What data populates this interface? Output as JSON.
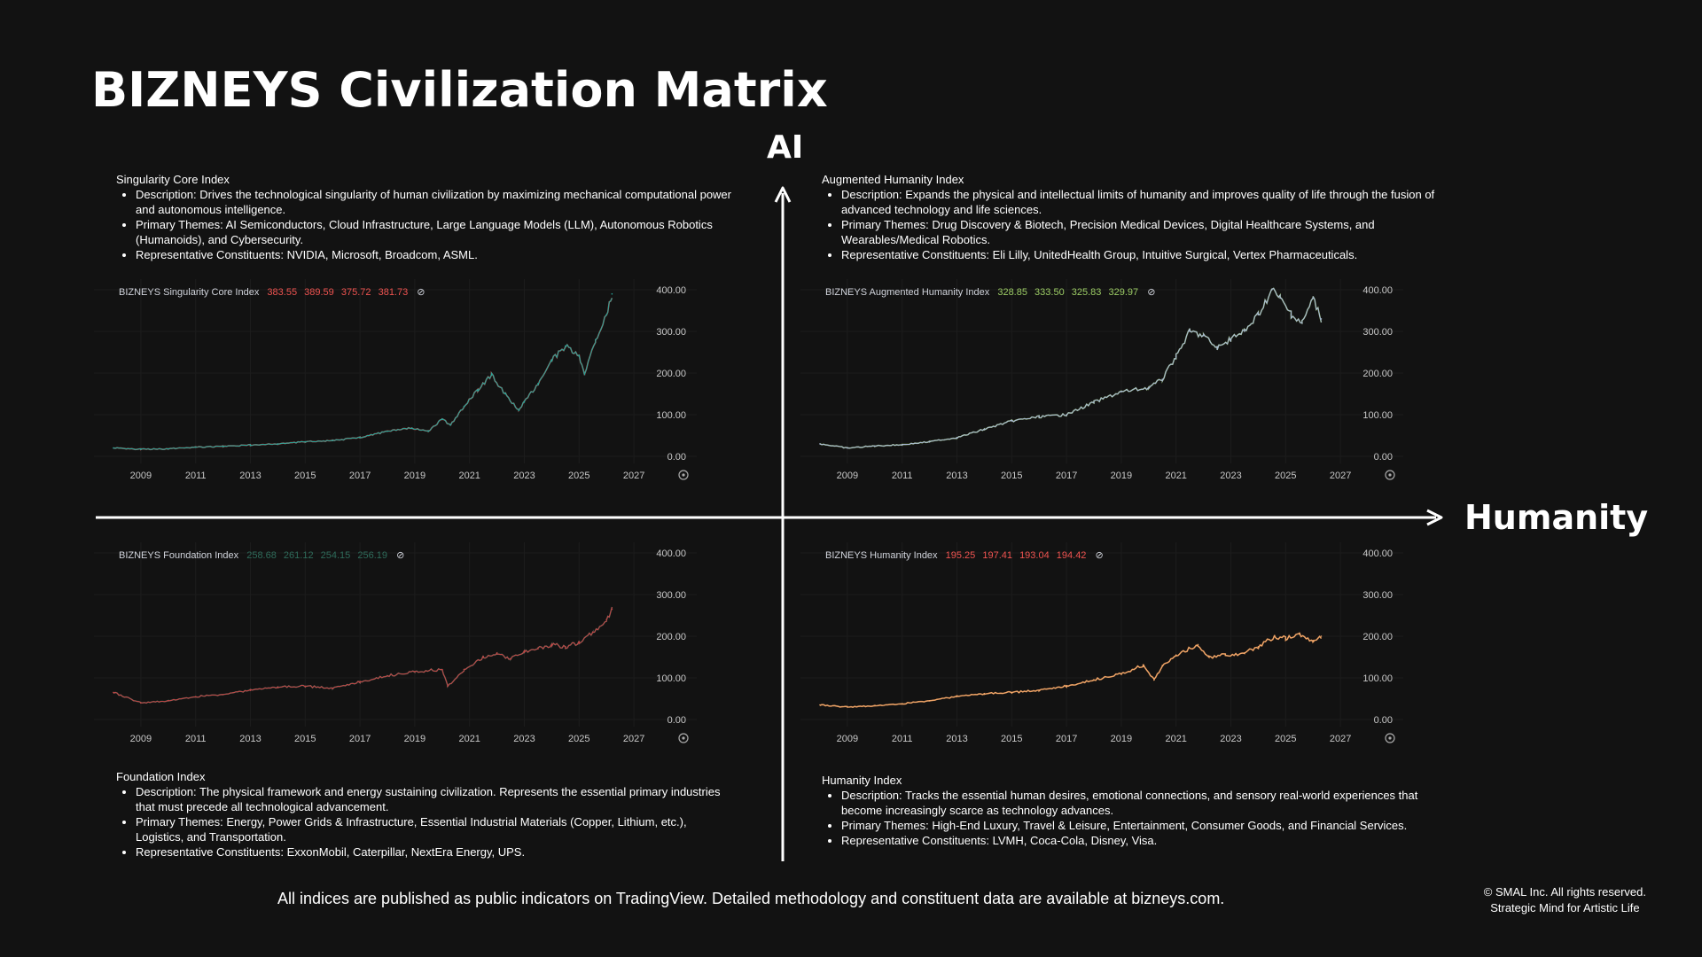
{
  "title": "BIZNEYS Civilization Matrix",
  "axes": {
    "vertical": "AI",
    "horizontal": "Humanity"
  },
  "descriptions": {
    "singularity": {
      "title": "Singularity Core Index",
      "description_label": "Description:",
      "description": "Drives the technological singularity of human civilization by maximizing mechanical computational power and autonomous intelligence.",
      "themes_label": "Primary Themes:",
      "themes": "AI Semiconductors, Cloud Infrastructure, Large Language Models (LLM), Autonomous Robotics (Humanoids), and Cybersecurity.",
      "constituents_label": "Representative Constituents:",
      "constituents": "NVIDIA, Microsoft, Broadcom, ASML."
    },
    "augmented": {
      "title": "Augmented Humanity Index",
      "description_label": "Description:",
      "description": "Expands the physical and intellectual limits of humanity and improves quality of life through the fusion of advanced technology and life sciences.",
      "themes_label": "Primary Themes:",
      "themes": "Drug Discovery & Biotech, Precision Medical Devices, Digital Healthcare Systems, and Wearables/Medical Robotics.",
      "constituents_label": "Representative Constituents:",
      "constituents": "Eli Lilly, UnitedHealth Group, Intuitive Surgical, Vertex Pharmaceuticals."
    },
    "foundation": {
      "title": "Foundation Index",
      "description_label": "Description:",
      "description": "The physical framework and energy sustaining civilization. Represents the essential primary industries that must precede all technological advancement.",
      "themes_label": "Primary Themes:",
      "themes": "Energy, Power Grids & Infrastructure, Essential Industrial Materials (Copper, Lithium, etc.), Logistics, and Transportation.",
      "constituents_label": "Representative Constituents:",
      "constituents": "ExxonMobil, Caterpillar, NextEra Energy, UPS."
    },
    "humanity": {
      "title": "Humanity Index",
      "description_label": "Description:",
      "description": "Tracks the essential human desires, emotional connections, and sensory real-world experiences that become increasingly scarce as technology advances.",
      "themes_label": "Primary Themes:",
      "themes": "High-End Luxury, Travel & Leisure, Entertainment, Consumer Goods, and Financial Services.",
      "constituents_label": "Representative Constituents:",
      "constituents": "LVMH, Coca-Cola, Disney, Visa."
    }
  },
  "chart_data": [
    {
      "id": "singularity",
      "type": "line",
      "name": "BIZNEYS Singularity Core Index",
      "ohlc": [
        "383.55",
        "389.59",
        "375.72",
        "381.73"
      ],
      "legend_color": "#ef5350",
      "line_color": "#26a69a",
      "line_color2": "#ef5350",
      "x_ticks": [
        "2009",
        "2011",
        "2013",
        "2015",
        "2017",
        "2019",
        "2021",
        "2023",
        "2025",
        "2027"
      ],
      "y_ticks": [
        "400.00",
        "300.00",
        "200.00",
        "100.00",
        "0.00"
      ],
      "ylim": [
        0,
        400
      ],
      "xlim": [
        2008,
        2028
      ],
      "x": [
        2008.0,
        2009.0,
        2010.0,
        2011.0,
        2012.0,
        2013.0,
        2014.0,
        2015.0,
        2016.0,
        2017.0,
        2018.0,
        2018.9,
        2019.5,
        2020.0,
        2020.3,
        2020.8,
        2021.3,
        2021.8,
        2022.3,
        2022.8,
        2023.0,
        2023.5,
        2024.0,
        2024.5,
        2025.0,
        2025.2,
        2025.6,
        2026.0,
        2026.2
      ],
      "y": [
        20,
        17,
        18,
        22,
        24,
        27,
        30,
        35,
        38,
        45,
        60,
        68,
        60,
        90,
        75,
        120,
        160,
        195,
        150,
        110,
        130,
        175,
        230,
        265,
        240,
        200,
        280,
        340,
        390
      ]
    },
    {
      "id": "augmented",
      "type": "line",
      "name": "BIZNEYS Augmented Humanity Index",
      "ohlc": [
        "328.85",
        "333.50",
        "325.83",
        "329.97"
      ],
      "legend_color": "#9ccc65",
      "line_color": "#a9b8d4",
      "line_color2": "#9ccc65",
      "x_ticks": [
        "2009",
        "2011",
        "2013",
        "2015",
        "2017",
        "2019",
        "2021",
        "2023",
        "2025",
        "2027"
      ],
      "y_ticks": [
        "400.00",
        "300.00",
        "200.00",
        "100.00",
        "0.00"
      ],
      "ylim": [
        0,
        400
      ],
      "xlim": [
        2008,
        2028
      ],
      "x": [
        2008.0,
        2009.0,
        2010.0,
        2011.0,
        2012.0,
        2013.0,
        2014.0,
        2015.0,
        2016.0,
        2017.0,
        2018.0,
        2019.0,
        2020.0,
        2020.5,
        2021.0,
        2021.5,
        2022.0,
        2022.5,
        2023.0,
        2023.5,
        2024.0,
        2024.5,
        2024.8,
        2025.2,
        2025.6,
        2026.0,
        2026.3
      ],
      "y": [
        30,
        20,
        25,
        28,
        35,
        45,
        65,
        85,
        95,
        100,
        130,
        155,
        165,
        185,
        240,
        300,
        290,
        260,
        280,
        300,
        340,
        400,
        380,
        340,
        320,
        380,
        330
      ]
    },
    {
      "id": "foundation",
      "type": "line",
      "name": "BIZNEYS Foundation Index",
      "ohlc": [
        "258.68",
        "261.12",
        "254.15",
        "256.19"
      ],
      "legend_color": "#2e6b5a",
      "line_color": "#c24545",
      "line_color2": "#2e6b5a",
      "x_ticks": [
        "2009",
        "2011",
        "2013",
        "2015",
        "2017",
        "2019",
        "2021",
        "2023",
        "2025",
        "2027"
      ],
      "y_ticks": [
        "400.00",
        "300.00",
        "200.00",
        "100.00",
        "0.00"
      ],
      "ylim": [
        0,
        400
      ],
      "xlim": [
        2008,
        2028
      ],
      "x": [
        2008.0,
        2009.0,
        2010.0,
        2011.0,
        2012.0,
        2013.0,
        2014.0,
        2015.0,
        2016.0,
        2017.0,
        2018.0,
        2019.0,
        2020.0,
        2020.2,
        2020.8,
        2021.5,
        2022.0,
        2022.5,
        2023.0,
        2023.5,
        2024.0,
        2024.5,
        2025.0,
        2025.5,
        2026.0,
        2026.2
      ],
      "y": [
        65,
        40,
        45,
        55,
        60,
        70,
        78,
        80,
        75,
        90,
        105,
        115,
        120,
        80,
        120,
        150,
        160,
        145,
        165,
        170,
        180,
        175,
        185,
        210,
        240,
        265
      ]
    },
    {
      "id": "humanity",
      "type": "line",
      "name": "BIZNEYS Humanity Index",
      "ohlc": [
        "195.25",
        "197.41",
        "193.04",
        "194.42"
      ],
      "legend_color": "#ef5350",
      "line_color": "#f2a86a",
      "line_color2": "#ef9a5a",
      "x_ticks": [
        "2009",
        "2011",
        "2013",
        "2015",
        "2017",
        "2019",
        "2021",
        "2023",
        "2025",
        "2027"
      ],
      "y_ticks": [
        "400.00",
        "300.00",
        "200.00",
        "100.00",
        "0.00"
      ],
      "ylim": [
        0,
        400
      ],
      "xlim": [
        2008,
        2028
      ],
      "x": [
        2008.0,
        2009.0,
        2010.0,
        2011.0,
        2012.0,
        2013.0,
        2014.0,
        2015.0,
        2016.0,
        2017.0,
        2018.0,
        2019.0,
        2019.8,
        2020.2,
        2020.5,
        2021.0,
        2021.8,
        2022.2,
        2022.8,
        2023.5,
        2024.0,
        2024.6,
        2025.0,
        2025.5,
        2026.0,
        2026.3
      ],
      "y": [
        35,
        30,
        33,
        38,
        45,
        55,
        62,
        65,
        70,
        80,
        95,
        110,
        130,
        95,
        130,
        155,
        180,
        150,
        155,
        160,
        175,
        200,
        195,
        205,
        190,
        200
      ]
    }
  ],
  "footer": "All indices are published as public indicators on TradingView. Detailed methodology and constituent data are available at bizneys.com.",
  "copyright": {
    "line1": "© SMAL Inc. All rights reserved.",
    "line2": "Strategic Mind for Artistic Life"
  }
}
